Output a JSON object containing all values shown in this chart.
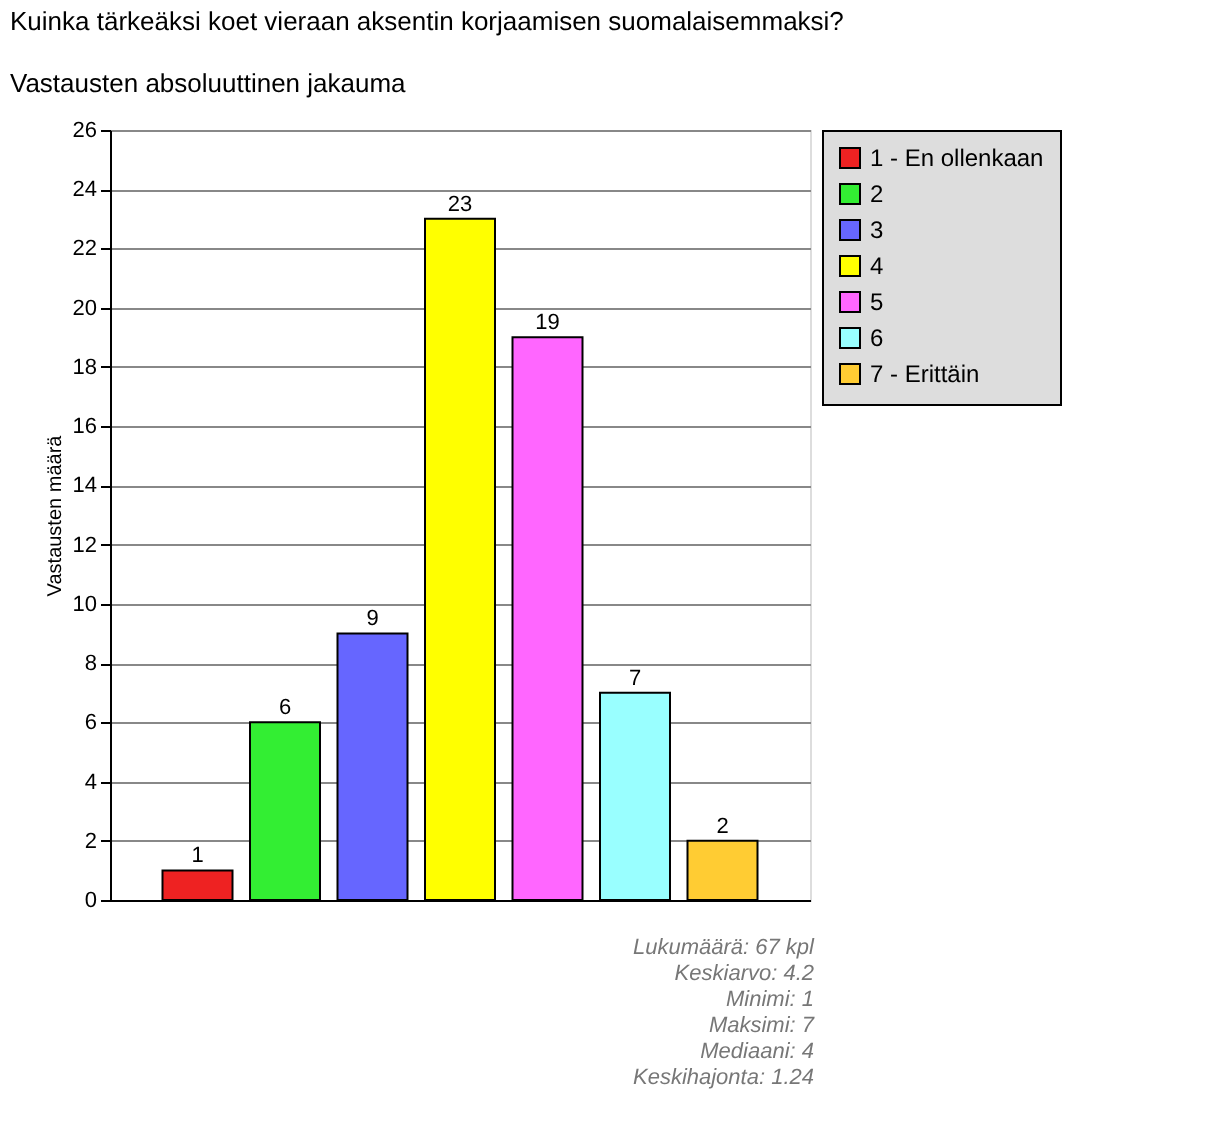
{
  "chart_data": {
    "type": "bar",
    "title": "Kuinka tärkeäksi koet vieraan aksentin korjaamisen suomalaisemmaksi?",
    "subtitle": "Vastausten absoluuttinen jakauma",
    "ylabel": "Vastausten määrä",
    "categories": [
      null,
      null,
      null,
      null,
      null,
      null,
      null
    ],
    "stacked": true,
    "series": [
      {
        "name": "1 - En ollenkaan",
        "color": "#ee2222",
        "values": [
          1,
          null,
          null,
          null,
          null,
          null,
          null
        ]
      },
      {
        "name": "2",
        "color": "#33ee33",
        "values": [
          null,
          6,
          null,
          null,
          null,
          null,
          null
        ]
      },
      {
        "name": "3",
        "color": "#6666ff",
        "values": [
          null,
          null,
          9,
          null,
          null,
          null,
          null
        ]
      },
      {
        "name": "4",
        "color": "#ffff00",
        "values": [
          null,
          null,
          null,
          23,
          null,
          null,
          null
        ]
      },
      {
        "name": "5",
        "color": "#ff66ff",
        "values": [
          null,
          null,
          null,
          null,
          19,
          null,
          null
        ]
      },
      {
        "name": "6",
        "color": "#99ffff",
        "values": [
          null,
          null,
          null,
          null,
          null,
          7,
          null
        ]
      },
      {
        "name": "7 - Erittäin",
        "color": "#ffcc33",
        "values": [
          null,
          null,
          null,
          null,
          null,
          null,
          2
        ]
      }
    ],
    "ylim": [
      0,
      26
    ],
    "yticks": [
      0,
      2,
      4,
      6,
      8,
      10,
      12,
      14,
      16,
      18,
      20,
      22,
      24,
      26
    ],
    "grid": "y",
    "data_labels": true,
    "tick_labels": "y",
    "legend": "right",
    "annotations": [
      "Lukumäärä: 67 kpl",
      "Keskiarvo: 4.2",
      "Minimi: 1",
      "Maksimi: 7",
      "Mediaani: 4",
      "Keskihajonta: 1.24"
    ]
  }
}
